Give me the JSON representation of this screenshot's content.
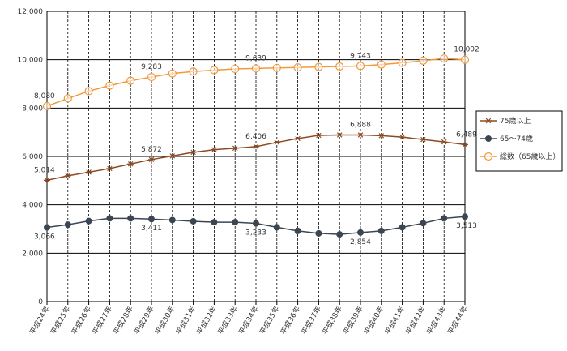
{
  "chart_data": {
    "type": "line",
    "categories": [
      "平成24年",
      "平成25年",
      "平成26年",
      "平成27年",
      "平成28年",
      "平成29年",
      "平成30年",
      "平成31年",
      "平成32年",
      "平成33年",
      "平成34年",
      "平成35年",
      "平成36年",
      "平成37年",
      "平成38年",
      "平成39年",
      "平成40年",
      "平成41年",
      "平成42年",
      "平成43年",
      "平成44年"
    ],
    "ylim": [
      0,
      12000
    ],
    "yticks": [
      "0",
      "2,000",
      "4,000",
      "6,000",
      "8,000",
      "10,000",
      "12,000"
    ],
    "grid": true,
    "legend_position": "right",
    "series": [
      {
        "name": "75歳以上",
        "color": "#8c4a22",
        "marker": "asterisk",
        "values": [
          5014,
          5200,
          5350,
          5500,
          5690,
          5872,
          6020,
          6170,
          6280,
          6340,
          6406,
          6580,
          6740,
          6870,
          6888,
          6888,
          6860,
          6800,
          6700,
          6600,
          6489
        ]
      },
      {
        "name": "65～74歳",
        "color": "#3c4652",
        "marker": "dot",
        "values": [
          3066,
          3180,
          3330,
          3440,
          3440,
          3411,
          3370,
          3320,
          3280,
          3280,
          3233,
          3070,
          2920,
          2820,
          2780,
          2854,
          2920,
          3070,
          3240,
          3440,
          3513
        ]
      },
      {
        "name": "総数（65歳以上）",
        "color": "#f09a3c",
        "marker": "circle",
        "values": [
          8080,
          8400,
          8700,
          8930,
          9130,
          9283,
          9430,
          9510,
          9570,
          9620,
          9639,
          9660,
          9680,
          9700,
          9720,
          9743,
          9800,
          9870,
          9960,
          10050,
          10002
        ]
      }
    ],
    "data_labels": [
      {
        "series": 2,
        "index": 0,
        "text": "8,080"
      },
      {
        "series": 2,
        "index": 5,
        "text": "9,283"
      },
      {
        "series": 2,
        "index": 10,
        "text": "9,639"
      },
      {
        "series": 2,
        "index": 15,
        "text": "9,743"
      },
      {
        "series": 2,
        "index": 20,
        "text": "10,002"
      },
      {
        "series": 0,
        "index": 0,
        "text": "5,014"
      },
      {
        "series": 0,
        "index": 5,
        "text": "5,872"
      },
      {
        "series": 0,
        "index": 10,
        "text": "6,406"
      },
      {
        "series": 0,
        "index": 15,
        "text": "6,888"
      },
      {
        "series": 0,
        "index": 20,
        "text": "6,489"
      },
      {
        "series": 1,
        "index": 0,
        "text": "3,066"
      },
      {
        "series": 1,
        "index": 5,
        "text": "3,411"
      },
      {
        "series": 1,
        "index": 10,
        "text": "3,233"
      },
      {
        "series": 1,
        "index": 15,
        "text": "2,854"
      },
      {
        "series": 1,
        "index": 20,
        "text": "3,513"
      }
    ]
  }
}
